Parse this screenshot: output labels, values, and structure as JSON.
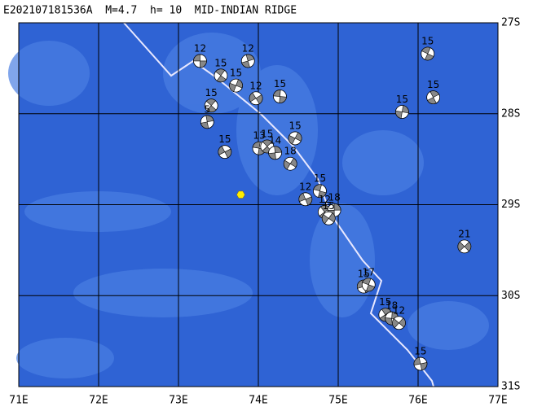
{
  "title": "E202107181536A  M=4.7  h= 10  MID-INDIAN RIDGE",
  "map": {
    "xlim": [
      71,
      77
    ],
    "ylim": [
      -31,
      -27
    ],
    "xticks": [
      {
        "value": 71,
        "label": "71E"
      },
      {
        "value": 72,
        "label": "72E"
      },
      {
        "value": 73,
        "label": "73E"
      },
      {
        "value": 74,
        "label": "74E"
      },
      {
        "value": 75,
        "label": "75E"
      },
      {
        "value": 76,
        "label": "76E"
      },
      {
        "value": 77,
        "label": "77E"
      }
    ],
    "yticks": [
      {
        "value": -27,
        "label": "27S"
      },
      {
        "value": -28,
        "label": "28S"
      },
      {
        "value": -29,
        "label": "29S"
      },
      {
        "value": -30,
        "label": "30S"
      },
      {
        "value": -31,
        "label": "31S"
      }
    ],
    "epicenter": {
      "lon": 73.78,
      "lat": -28.89
    },
    "events": [
      {
        "lon": 73.27,
        "lat": -27.42,
        "depth": 12
      },
      {
        "lon": 73.53,
        "lat": -27.58,
        "depth": 15
      },
      {
        "lon": 73.87,
        "lat": -27.42,
        "depth": 12
      },
      {
        "lon": 73.72,
        "lat": -27.69,
        "depth": 15
      },
      {
        "lon": 73.97,
        "lat": -27.83,
        "depth": 12
      },
      {
        "lon": 74.27,
        "lat": -27.81,
        "depth": 15
      },
      {
        "lon": 73.41,
        "lat": -27.91,
        "depth": 15
      },
      {
        "lon": 73.36,
        "lat": -28.09,
        "depth": 5
      },
      {
        "lon": 74.46,
        "lat": -28.27,
        "depth": 15
      },
      {
        "lon": 73.58,
        "lat": -28.42,
        "depth": 15
      },
      {
        "lon": 74.01,
        "lat": -28.38,
        "depth": 13
      },
      {
        "lon": 74.11,
        "lat": -28.36,
        "depth": 15
      },
      {
        "lon": 74.21,
        "lat": -28.43,
        "depth": 14
      },
      {
        "lon": 74.4,
        "lat": -28.55,
        "depth": 18
      },
      {
        "lon": 74.59,
        "lat": -28.94,
        "depth": 12
      },
      {
        "lon": 74.77,
        "lat": -28.85,
        "depth": 15
      },
      {
        "lon": 74.83,
        "lat": -29.08,
        "depth": 12
      },
      {
        "lon": 74.95,
        "lat": -29.06,
        "depth": 18
      },
      {
        "lon": 74.88,
        "lat": -29.15,
        "depth": 15
      },
      {
        "lon": 75.32,
        "lat": -29.9,
        "depth": 15
      },
      {
        "lon": 75.38,
        "lat": -29.88,
        "depth": 17
      },
      {
        "lon": 75.59,
        "lat": -30.21,
        "depth": 15
      },
      {
        "lon": 75.67,
        "lat": -30.25,
        "depth": 18
      },
      {
        "lon": 75.76,
        "lat": -30.3,
        "depth": 12
      },
      {
        "lon": 76.03,
        "lat": -30.75,
        "depth": 15
      },
      {
        "lon": 76.12,
        "lat": -27.34,
        "depth": 15
      },
      {
        "lon": 76.19,
        "lat": -27.82,
        "depth": 15
      },
      {
        "lon": 75.8,
        "lat": -27.98,
        "depth": 15
      },
      {
        "lon": 76.58,
        "lat": -29.46,
        "depth": 21
      }
    ]
  }
}
